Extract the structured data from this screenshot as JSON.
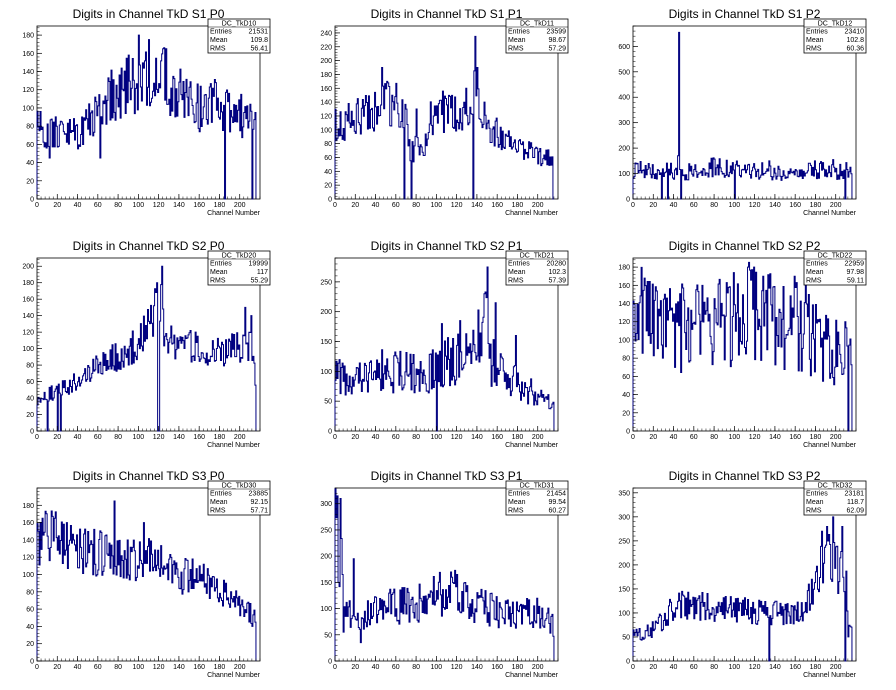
{
  "chart_data": [
    {
      "type": "histogram",
      "title": "Digits in Channel TkD S1 P0",
      "xlabel": "Channel Number",
      "ylabel": "",
      "xlim": [
        0,
        220
      ],
      "ylim": [
        0,
        190
      ],
      "xticks": [
        0,
        20,
        40,
        60,
        80,
        100,
        120,
        140,
        160,
        180,
        200
      ],
      "yticks": [
        0,
        20,
        40,
        60,
        80,
        100,
        120,
        140,
        160,
        180
      ],
      "stats": {
        "name": "DC_TkD10",
        "entries": "21531",
        "mean": "109.8",
        "rms": "56.41"
      },
      "profile": [
        [
          0,
          90
        ],
        [
          10,
          65
        ],
        [
          20,
          75
        ],
        [
          40,
          70
        ],
        [
          60,
          95
        ],
        [
          80,
          120
        ],
        [
          100,
          130
        ],
        [
          120,
          140
        ],
        [
          140,
          115
        ],
        [
          160,
          100
        ],
        [
          180,
          105
        ],
        [
          200,
          95
        ],
        [
          212,
          80
        ],
        [
          216,
          80
        ]
      ],
      "amp": 0.16,
      "seed": 1,
      "spikes": [
        [
          12,
          45
        ],
        [
          40,
          55
        ],
        [
          62,
          45
        ],
        [
          100,
          180
        ],
        [
          110,
          175
        ],
        [
          124,
          165
        ],
        [
          127,
          165
        ],
        [
          185,
          0
        ],
        [
          192,
          90
        ],
        [
          212,
          0
        ],
        [
          215,
          95
        ]
      ]
    },
    {
      "type": "histogram",
      "title": "Digits in Channel TkD S1 P1",
      "xlabel": "Channel Number",
      "ylabel": "",
      "xlim": [
        0,
        220
      ],
      "ylim": [
        0,
        250
      ],
      "xticks": [
        0,
        20,
        40,
        60,
        80,
        100,
        120,
        140,
        160,
        180,
        200
      ],
      "yticks": [
        0,
        20,
        40,
        60,
        80,
        100,
        120,
        140,
        160,
        180,
        200,
        220,
        240
      ],
      "stats": {
        "name": "DC_TkD11",
        "entries": "23599",
        "mean": "98.67",
        "rms": "57.29"
      },
      "profile": [
        [
          0,
          110
        ],
        [
          20,
          115
        ],
        [
          40,
          125
        ],
        [
          55,
          140
        ],
        [
          70,
          135
        ],
        [
          72,
          70
        ],
        [
          88,
          75
        ],
        [
          92,
          120
        ],
        [
          110,
          130
        ],
        [
          130,
          130
        ],
        [
          140,
          170
        ],
        [
          145,
          120
        ],
        [
          160,
          95
        ],
        [
          180,
          75
        ],
        [
          200,
          60
        ],
        [
          216,
          55
        ]
      ],
      "amp": 0.15,
      "seed": 2,
      "spikes": [
        [
          46,
          190
        ],
        [
          68,
          0
        ],
        [
          75,
          0
        ],
        [
          80,
          130
        ],
        [
          97,
          120
        ],
        [
          136,
          0
        ],
        [
          138,
          235
        ],
        [
          140,
          190
        ],
        [
          215,
          0
        ]
      ]
    },
    {
      "type": "histogram",
      "title": "Digits in Channel TkD S1 P2",
      "xlabel": "Channel Number",
      "ylabel": "",
      "xlim": [
        0,
        220
      ],
      "ylim": [
        0,
        680
      ],
      "xticks": [
        0,
        20,
        40,
        60,
        80,
        100,
        120,
        140,
        160,
        180,
        200
      ],
      "yticks": [
        0,
        100,
        200,
        300,
        400,
        500,
        600
      ],
      "stats": {
        "name": "DC_TkD12",
        "entries": "23410",
        "mean": "102.8",
        "rms": "60.36"
      },
      "profile": [
        [
          0,
          115
        ],
        [
          20,
          115
        ],
        [
          30,
          110
        ],
        [
          50,
          105
        ],
        [
          80,
          125
        ],
        [
          100,
          115
        ],
        [
          120,
          115
        ],
        [
          140,
          100
        ],
        [
          160,
          100
        ],
        [
          180,
          115
        ],
        [
          200,
          110
        ],
        [
          210,
          110
        ]
      ],
      "amp": 0.18,
      "seed": 3,
      "spikes": [
        [
          28,
          0
        ],
        [
          34,
          0
        ],
        [
          44,
          170
        ],
        [
          45,
          655
        ],
        [
          47,
          0
        ],
        [
          100,
          0
        ],
        [
          134,
          150
        ],
        [
          197,
          155
        ],
        [
          209,
          0
        ]
      ]
    },
    {
      "type": "histogram",
      "title": "Digits in Channel TkD S2 P0",
      "xlabel": "Channel Number",
      "ylabel": "",
      "xlim": [
        0,
        220
      ],
      "ylim": [
        0,
        210
      ],
      "xticks": [
        0,
        20,
        40,
        60,
        80,
        100,
        120,
        140,
        160,
        180,
        200
      ],
      "yticks": [
        0,
        20,
        40,
        60,
        80,
        100,
        120,
        140,
        160,
        180,
        200
      ],
      "stats": {
        "name": "DC_TkD20",
        "entries": "19999",
        "mean": "117",
        "rms": "55.29"
      },
      "profile": [
        [
          0,
          35
        ],
        [
          20,
          50
        ],
        [
          40,
          60
        ],
        [
          60,
          80
        ],
        [
          80,
          90
        ],
        [
          100,
          105
        ],
        [
          115,
          140
        ],
        [
          122,
          165
        ],
        [
          126,
          110
        ],
        [
          140,
          105
        ],
        [
          160,
          100
        ],
        [
          180,
          95
        ],
        [
          200,
          100
        ],
        [
          212,
          100
        ],
        [
          216,
          60
        ]
      ],
      "amp": 0.12,
      "seed": 4,
      "spikes": [
        [
          10,
          0
        ],
        [
          20,
          0
        ],
        [
          23,
          0
        ],
        [
          118,
          180
        ],
        [
          119,
          0
        ],
        [
          120,
          0
        ],
        [
          123,
          200
        ],
        [
          205,
          150
        ],
        [
          211,
          140
        ],
        [
          216,
          0
        ]
      ]
    },
    {
      "type": "histogram",
      "title": "Digits in Channel TkD S2 P1",
      "xlabel": "Channel Number",
      "ylabel": "",
      "xlim": [
        0,
        220
      ],
      "ylim": [
        0,
        290
      ],
      "xticks": [
        0,
        20,
        40,
        60,
        80,
        100,
        120,
        140,
        160,
        180,
        200
      ],
      "yticks": [
        0,
        50,
        100,
        150,
        200,
        250
      ],
      "stats": {
        "name": "DC_TkD21",
        "entries": "20280",
        "mean": "102.3",
        "rms": "57.39"
      },
      "profile": [
        [
          0,
          90
        ],
        [
          20,
          100
        ],
        [
          40,
          105
        ],
        [
          60,
          100
        ],
        [
          80,
          95
        ],
        [
          100,
          100
        ],
        [
          115,
          120
        ],
        [
          130,
          120
        ],
        [
          140,
          140
        ],
        [
          148,
          200
        ],
        [
          152,
          120
        ],
        [
          170,
          90
        ],
        [
          190,
          70
        ],
        [
          205,
          55
        ],
        [
          216,
          35
        ]
      ],
      "amp": 0.22,
      "seed": 5,
      "spikes": [
        [
          100,
          0
        ],
        [
          105,
          180
        ],
        [
          123,
          185
        ],
        [
          147,
          230
        ],
        [
          150,
          275
        ],
        [
          158,
          215
        ],
        [
          178,
          160
        ]
      ]
    },
    {
      "type": "histogram",
      "title": "Digits in Channel TkD S2 P2",
      "xlabel": "Channel Number",
      "ylabel": "",
      "xlim": [
        0,
        220
      ],
      "ylim": [
        0,
        190
      ],
      "xticks": [
        0,
        20,
        40,
        60,
        80,
        100,
        120,
        140,
        160,
        180,
        200
      ],
      "yticks": [
        0,
        20,
        40,
        60,
        80,
        100,
        120,
        140,
        160,
        180
      ],
      "stats": {
        "name": "DC_TkD22",
        "entries": "22959",
        "mean": "97.98",
        "rms": "59.11"
      },
      "profile": [
        [
          0,
          130
        ],
        [
          20,
          120
        ],
        [
          40,
          110
        ],
        [
          60,
          120
        ],
        [
          80,
          115
        ],
        [
          100,
          125
        ],
        [
          120,
          130
        ],
        [
          140,
          120
        ],
        [
          160,
          120
        ],
        [
          180,
          100
        ],
        [
          200,
          85
        ],
        [
          210,
          80
        ]
      ],
      "amp": 0.26,
      "seed": 6,
      "spikes": [
        [
          68,
          160
        ],
        [
          113,
          180
        ],
        [
          128,
          170
        ],
        [
          159,
          170
        ],
        [
          170,
          175
        ],
        [
          209,
          120
        ],
        [
          212,
          0
        ]
      ]
    },
    {
      "type": "histogram",
      "title": "Digits in Channel TkD S3 P0",
      "xlabel": "Channel Number",
      "ylabel": "",
      "xlim": [
        0,
        220
      ],
      "ylim": [
        0,
        200
      ],
      "xticks": [
        0,
        20,
        40,
        60,
        80,
        100,
        120,
        140,
        160,
        180,
        200
      ],
      "yticks": [
        0,
        20,
        40,
        60,
        80,
        100,
        120,
        140,
        160,
        180
      ],
      "stats": {
        "name": "DC_TkD30",
        "entries": "23885",
        "mean": "92.15",
        "rms": "57.71"
      },
      "profile": [
        [
          0,
          140
        ],
        [
          20,
          145
        ],
        [
          40,
          130
        ],
        [
          60,
          125
        ],
        [
          80,
          120
        ],
        [
          100,
          118
        ],
        [
          120,
          115
        ],
        [
          140,
          100
        ],
        [
          160,
          95
        ],
        [
          180,
          80
        ],
        [
          200,
          65
        ],
        [
          216,
          50
        ]
      ],
      "amp": 0.13,
      "seed": 7,
      "spikes": [
        [
          5,
          165
        ],
        [
          17,
          165
        ],
        [
          29,
          160
        ],
        [
          76,
          185
        ],
        [
          105,
          160
        ],
        [
          212,
          40
        ],
        [
          215,
          45
        ]
      ]
    },
    {
      "type": "histogram",
      "title": "Digits in Channel TkD S3 P1",
      "xlabel": "Channel Number",
      "ylabel": "",
      "xlim": [
        0,
        220
      ],
      "ylim": [
        0,
        330
      ],
      "xticks": [
        0,
        20,
        40,
        60,
        80,
        100,
        120,
        140,
        160,
        180,
        200
      ],
      "yticks": [
        0,
        50,
        100,
        150,
        200,
        250,
        300
      ],
      "stats": {
        "name": "DC_TkD31",
        "entries": "21454",
        "mean": "99.54",
        "rms": "60.27"
      },
      "profile": [
        [
          0,
          250
        ],
        [
          6,
          200
        ],
        [
          10,
          100
        ],
        [
          20,
          90
        ],
        [
          40,
          95
        ],
        [
          60,
          105
        ],
        [
          80,
          110
        ],
        [
          100,
          125
        ],
        [
          120,
          135
        ],
        [
          140,
          105
        ],
        [
          160,
          95
        ],
        [
          180,
          90
        ],
        [
          200,
          90
        ],
        [
          216,
          70
        ]
      ],
      "amp": 0.2,
      "seed": 8,
      "spikes": [
        [
          2,
          315
        ],
        [
          3,
          150
        ],
        [
          5,
          310
        ],
        [
          8,
          55
        ],
        [
          14,
          115
        ],
        [
          18,
          195
        ],
        [
          25,
          35
        ],
        [
          120,
          165
        ]
      ]
    },
    {
      "type": "histogram",
      "title": "Digits in Channel TkD S3 P2",
      "xlabel": "Channel Number",
      "ylabel": "",
      "xlim": [
        0,
        220
      ],
      "ylim": [
        0,
        360
      ],
      "xticks": [
        0,
        20,
        40,
        60,
        80,
        100,
        120,
        140,
        160,
        180,
        200
      ],
      "yticks": [
        0,
        50,
        100,
        150,
        200,
        250,
        300,
        350
      ],
      "stats": {
        "name": "DC_TkD32",
        "entries": "23181",
        "mean": "118.7",
        "rms": "62.09"
      },
      "profile": [
        [
          0,
          55
        ],
        [
          20,
          65
        ],
        [
          40,
          110
        ],
        [
          60,
          115
        ],
        [
          80,
          110
        ],
        [
          100,
          105
        ],
        [
          120,
          105
        ],
        [
          140,
          100
        ],
        [
          160,
          100
        ],
        [
          170,
          110
        ],
        [
          180,
          160
        ],
        [
          190,
          220
        ],
        [
          200,
          190
        ],
        [
          210,
          180
        ],
        [
          212,
          60
        ]
      ],
      "amp": 0.16,
      "seed": 9,
      "spikes": [
        [
          48,
          145
        ],
        [
          134,
          0
        ],
        [
          186,
          270
        ],
        [
          191,
          280
        ],
        [
          197,
          300
        ],
        [
          206,
          280
        ],
        [
          209,
          0
        ]
      ]
    }
  ],
  "colors": {
    "line": "#000080",
    "axis": "#000000",
    "background": "#ffffff"
  },
  "labels": {
    "entries": "Entries",
    "mean": "Mean",
    "rms": "RMS"
  }
}
